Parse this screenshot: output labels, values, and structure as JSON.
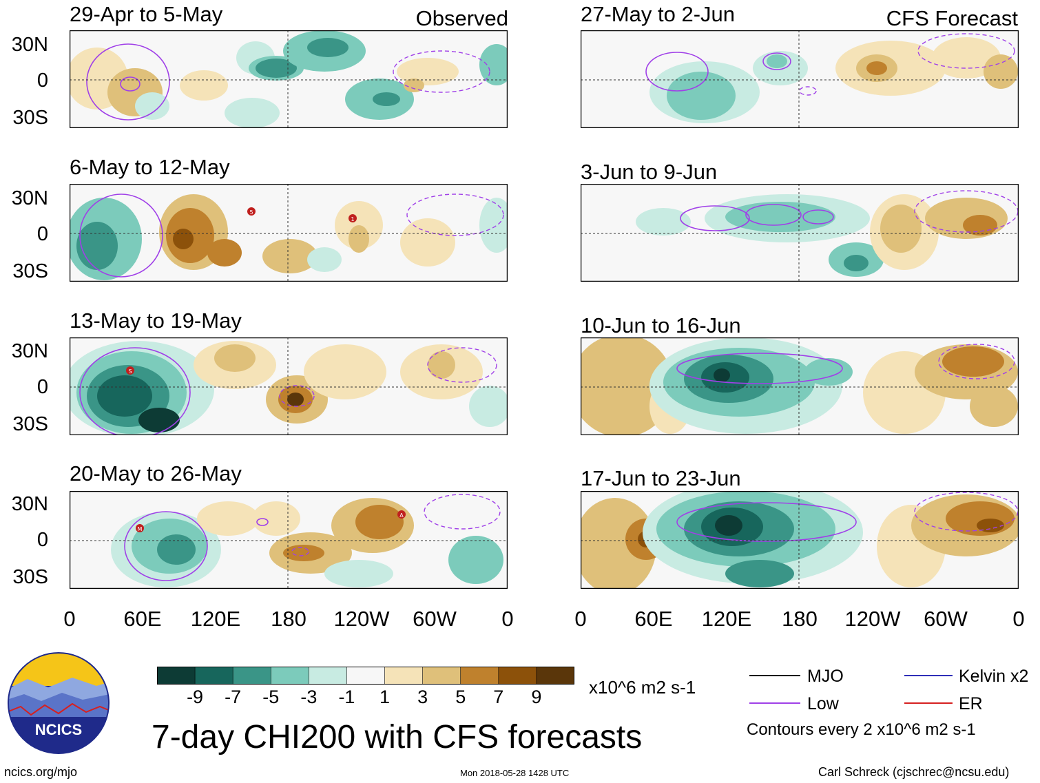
{
  "figure": {
    "title": "7-day CHI200 with CFS forecasts",
    "units": "x10^6 m2 s-1",
    "footer_left": "ncics.org/mjo",
    "footer_center": "Mon 2018-05-28 1428 UTC",
    "footer_right": "Carl Schreck (cjschrec@ncsu.edu)",
    "logo_text": "NCICS",
    "contour_note": "Contours every 2 x10^6 m2 s-1"
  },
  "columns": {
    "left_label": "Observed",
    "right_label": "CFS Forecast"
  },
  "panels_observed": [
    {
      "title": "29-Apr to 5-May"
    },
    {
      "title": "6-May to 12-May"
    },
    {
      "title": "13-May to 19-May"
    },
    {
      "title": "20-May to 26-May"
    }
  ],
  "panels_forecast": [
    {
      "title": "27-May to 2-Jun"
    },
    {
      "title": "3-Jun to 9-Jun"
    },
    {
      "title": "10-Jun to 16-Jun"
    },
    {
      "title": "17-Jun to 23-Jun"
    }
  ],
  "lat_ticks": [
    "30N",
    "0",
    "30S"
  ],
  "lon_ticks": [
    "0",
    "60E",
    "120E",
    "180",
    "120W",
    "60W",
    "0"
  ],
  "colorbar": {
    "labels": [
      "-9",
      "-7",
      "-5",
      "-3",
      "-1",
      "1",
      "3",
      "5",
      "7",
      "9"
    ],
    "colors": [
      "#0d3b35",
      "#17665c",
      "#3a9587",
      "#7ccbbb",
      "#c8ebe2",
      "#f7f7f7",
      "#f5e3b8",
      "#dfc07a",
      "#bf812d",
      "#8c510a",
      "#5a360a"
    ]
  },
  "legend": [
    {
      "name": "MJO",
      "color": "#000000"
    },
    {
      "name": "Kelvin x2",
      "color": "#2f2fb8"
    },
    {
      "name": "Low",
      "color": "#a040e8"
    },
    {
      "name": "ER",
      "color": "#d62020"
    }
  ],
  "storm_markers": [
    {
      "panel": "observed-2",
      "label": "5"
    },
    {
      "panel": "observed-2",
      "label": "1"
    },
    {
      "panel": "observed-3",
      "label": "S"
    },
    {
      "panel": "observed-4",
      "label": "M"
    },
    {
      "panel": "observed-4",
      "label": "A"
    }
  ]
}
